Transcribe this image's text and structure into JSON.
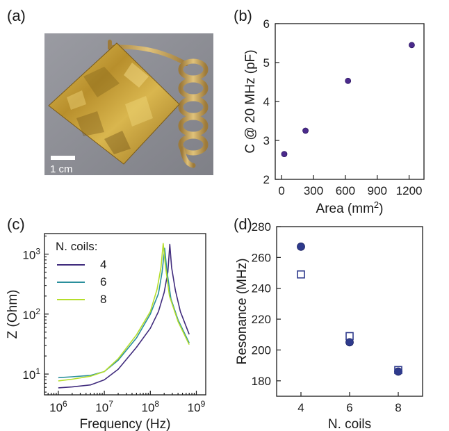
{
  "panels": {
    "a": {
      "label": "(a)",
      "scale_bar_text": "1 cm",
      "colors": {
        "background": "#8f9096",
        "gold": "#c9a43c",
        "gold_dark": "#8a6a1c",
        "coil": "#c8a25a"
      }
    },
    "b": {
      "label": "(b)"
    },
    "c": {
      "label": "(c)"
    },
    "d": {
      "label": "(d)"
    }
  },
  "chart_data": [
    {
      "id": "b",
      "type": "scatter",
      "xlabel": "Area (mm",
      "xlabel_sup": "2",
      "xlabel_tail": ")",
      "ylabel": "C @ 20 MHz (pF)",
      "xlim": [
        -60,
        1340
      ],
      "ylim": [
        2,
        6
      ],
      "xticks": [
        0,
        300,
        600,
        900,
        1200
      ],
      "yticks": [
        2,
        3,
        4,
        5,
        6
      ],
      "marker_color": "#4b2a8c",
      "series": [
        {
          "x": [
            25,
            225,
            625,
            1225
          ],
          "y": [
            2.65,
            3.25,
            4.53,
            5.45
          ]
        }
      ]
    },
    {
      "id": "c",
      "type": "line",
      "log_x": true,
      "log_y": true,
      "xlabel": "Frequency (Hz)",
      "ylabel": "Z (Ohm)",
      "xlim": [
        500000,
        1600000000
      ],
      "ylim": [
        4.5,
        2200
      ],
      "xticks": [
        {
          "value": 1000000,
          "base": "10",
          "exp": "6"
        },
        {
          "value": 10000000,
          "base": "10",
          "exp": "7"
        },
        {
          "value": 100000000,
          "base": "10",
          "exp": "8"
        },
        {
          "value": 1000000000,
          "base": "10",
          "exp": "9"
        }
      ],
      "yticks": [
        {
          "value": 10,
          "base": "10",
          "exp": "1"
        },
        {
          "value": 100,
          "base": "10",
          "exp": "2"
        },
        {
          "value": 1000,
          "base": "10",
          "exp": "3"
        }
      ],
      "legend_title": "N. coils:",
      "legend_position": "top-left",
      "series": [
        {
          "name": "4",
          "color": "#3f2a7c",
          "x": [
            1000000,
            2000000,
            5000000,
            10000000,
            20000000,
            50000000,
            100000000,
            150000000,
            200000000,
            240000000,
            265000000,
            290000000,
            350000000,
            450000000,
            700000000
          ],
          "y": [
            5.9,
            6.1,
            6.6,
            8.0,
            12,
            28,
            58,
            110,
            230,
            500,
            1450,
            600,
            250,
            110,
            46
          ]
        },
        {
          "name": "6",
          "color": "#2a8f9c",
          "x": [
            1000000,
            2000000,
            5000000,
            10000000,
            20000000,
            50000000,
            100000000,
            150000000,
            180000000,
            205000000,
            230000000,
            280000000,
            400000000,
            700000000
          ],
          "y": [
            8.7,
            9.0,
            9.5,
            11,
            17,
            40,
            100,
            220,
            500,
            1250,
            520,
            180,
            80,
            33
          ]
        },
        {
          "name": "8",
          "color": "#b5de2b",
          "x": [
            1000000,
            2000000,
            5000000,
            10000000,
            20000000,
            50000000,
            100000000,
            140000000,
            170000000,
            190000000,
            215000000,
            260000000,
            400000000,
            700000000
          ],
          "y": [
            7.7,
            8.2,
            9.2,
            11,
            18,
            45,
            110,
            260,
            600,
            1500,
            600,
            200,
            75,
            31
          ]
        }
      ]
    },
    {
      "id": "d",
      "type": "scatter",
      "xlabel": "N. coils",
      "ylabel": "Resonance (MHz)",
      "xlim": [
        3,
        9
      ],
      "ylim": [
        170,
        280
      ],
      "xticks": [
        4,
        6,
        8
      ],
      "yticks": [
        180,
        200,
        220,
        240,
        260,
        280
      ],
      "series": [
        {
          "marker": "filled-circle",
          "color": "#2e3a8c",
          "x": [
            4,
            6,
            8
          ],
          "y": [
            267,
            205,
            186
          ]
        },
        {
          "marker": "open-square",
          "color": "#2e3a8c",
          "x": [
            4,
            6,
            8
          ],
          "y": [
            249,
            209,
            187
          ]
        }
      ]
    }
  ]
}
